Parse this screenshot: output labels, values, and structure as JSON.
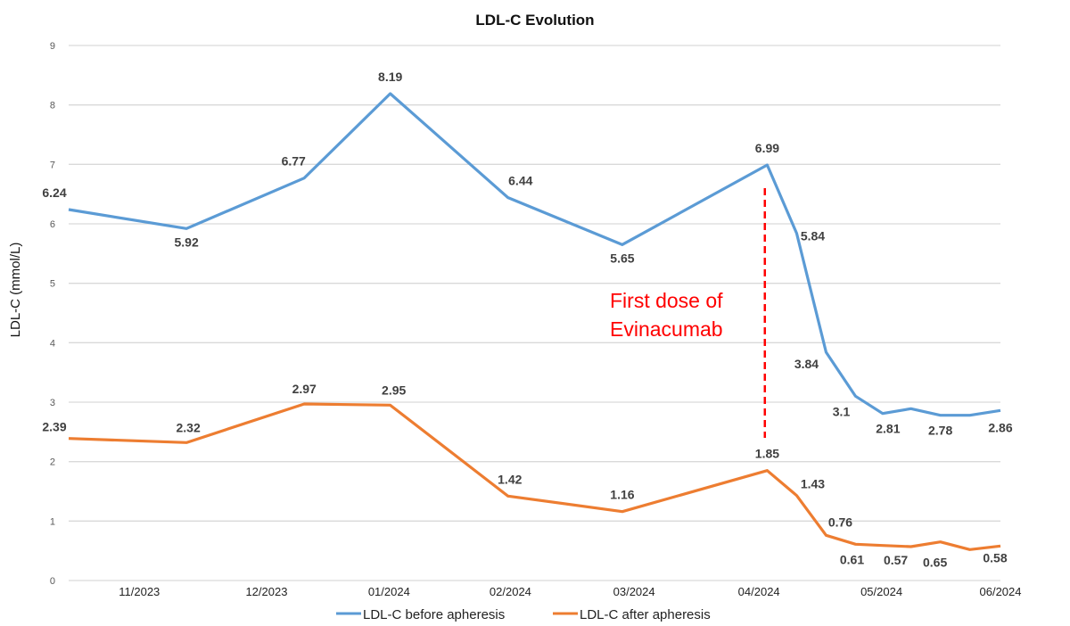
{
  "chart_data": {
    "type": "line",
    "title": "LDL-C Evolution",
    "xlabel": "",
    "ylabel": "LDL-C (mmol/L)",
    "ylim": [
      0,
      9
    ],
    "yticks": [
      0,
      1,
      2,
      3,
      4,
      5,
      6,
      7,
      8,
      9
    ],
    "grid": true,
    "legend_position": "bottom",
    "x_tick_labels": [
      "11/2023",
      "12/2023",
      "01/2024",
      "02/2024",
      "03/2024",
      "04/2024",
      "05/2024",
      "06/2024"
    ],
    "x_tick_positions": [
      0.6,
      1.68,
      2.72,
      3.75,
      4.8,
      5.86,
      6.9,
      7.91
    ],
    "x": [
      0,
      1,
      2,
      2.73,
      3.73,
      4.7,
      5.93,
      6.18,
      6.43,
      6.68,
      6.91,
      7.15,
      7.4,
      7.65,
      7.91
    ],
    "series": [
      {
        "name": "LDL-C before apheresis",
        "color": "#5b9bd5",
        "values": [
          6.24,
          5.92,
          6.77,
          8.19,
          6.44,
          5.65,
          6.99,
          5.84,
          3.84,
          3.1,
          2.81,
          2.89,
          2.78,
          2.78,
          2.86
        ],
        "labels": [
          "6.24",
          "5.92",
          "6.77",
          "8.19",
          "6.44",
          "5.65",
          "6.99",
          "5.84",
          "3.84",
          "3.1",
          "2.81",
          "",
          "2.78",
          "",
          "2.86"
        ]
      },
      {
        "name": "LDL-C after apheresis",
        "color": "#ed7d31",
        "values": [
          2.39,
          2.32,
          2.97,
          2.95,
          1.42,
          1.16,
          1.85,
          1.43,
          0.76,
          0.61,
          0.59,
          0.57,
          0.65,
          0.52,
          0.58
        ],
        "labels": [
          "2.39",
          "2.32",
          "2.97",
          "2.95",
          "1.42",
          "1.16",
          "1.85",
          "1.43",
          "0.76",
          "0.61",
          "",
          "0.57",
          "0.65",
          "",
          "0.58"
        ]
      }
    ],
    "annotations": [
      {
        "text_lines": [
          "First dose of",
          "Evinacumab"
        ],
        "color": "#ff0000",
        "marker": "dashed vertical line",
        "x": 5.91,
        "y_range": [
          2.4,
          6.6
        ]
      }
    ]
  }
}
